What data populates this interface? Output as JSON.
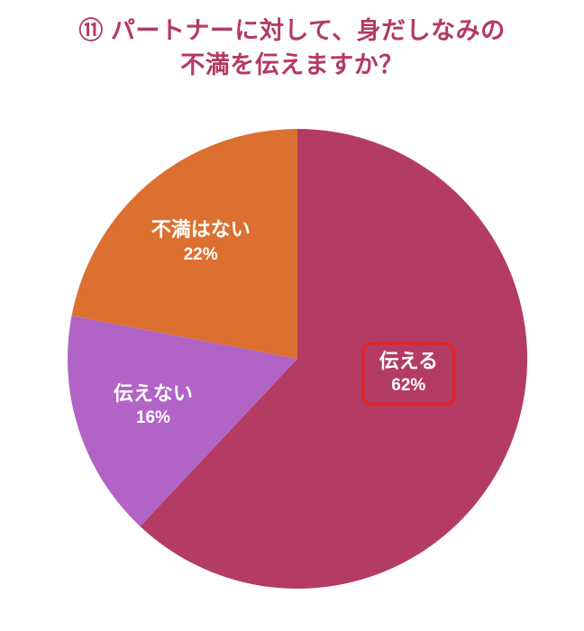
{
  "title": {
    "line1": "⑪ パートナーに対して、身だしなみの",
    "line2": "不満を伝えますか？"
  },
  "colors": {
    "background": "#ffffff",
    "title_text": "#b43a62",
    "label_text": "#ffffff",
    "highlight_border": "#e8231d"
  },
  "chart_data": {
    "type": "pie",
    "title": "⑪ パートナーに対して、身だしなみの不満を伝えますか？",
    "labels": [
      "伝える",
      "伝えない",
      "不満はない"
    ],
    "values": [
      62,
      16,
      22
    ],
    "value_labels": [
      "62%",
      "16%",
      "22%"
    ],
    "colors": [
      "#b43b63",
      "#b164c6",
      "#dc7030"
    ],
    "start_angle_deg": 0,
    "direction": "clockwise",
    "highlighted_label": "伝える",
    "legend": "none"
  }
}
